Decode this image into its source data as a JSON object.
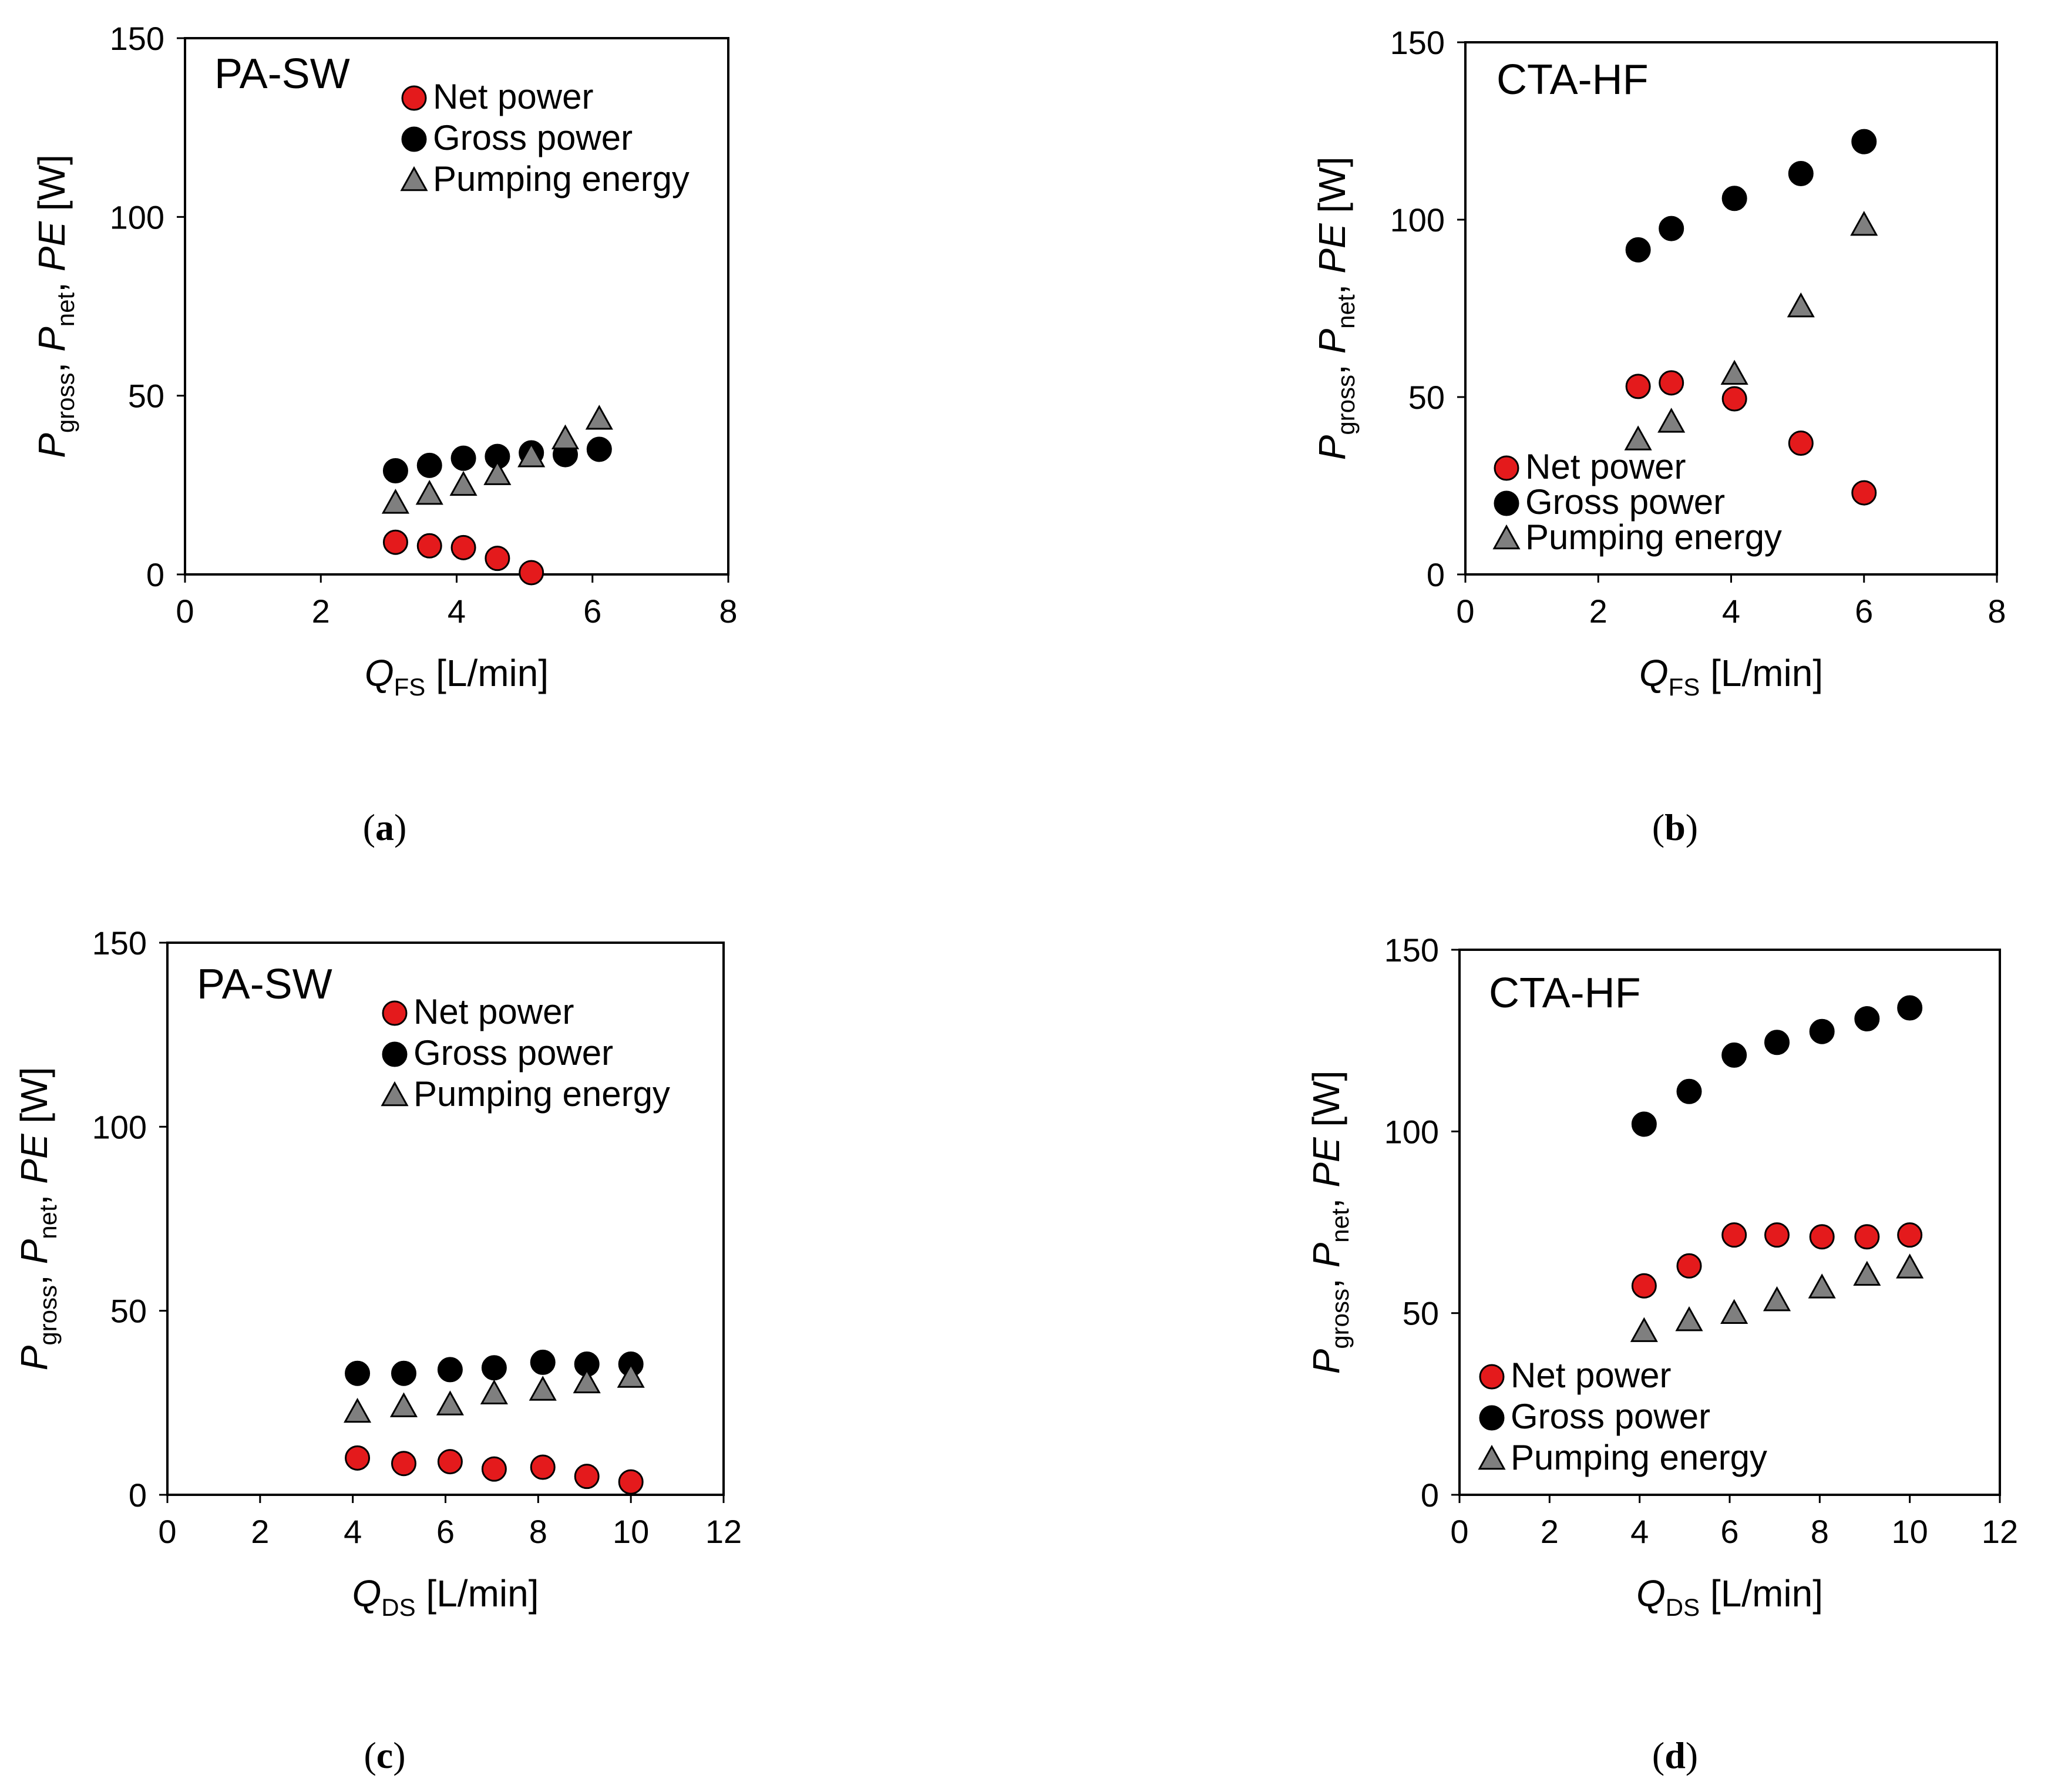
{
  "chart_data": [
    {
      "id": "a",
      "type": "scatter",
      "caption": "a",
      "title": "PA-SW",
      "xlabel": {
        "var": "Q",
        "sub": "FS",
        "unit": " [L/min]"
      },
      "ylabel": [
        {
          "var": "P",
          "sub": "gross",
          "sep": ", "
        },
        {
          "var": "P",
          "sub": "net",
          "sep": ", "
        },
        {
          "var": "PE",
          "sub": "",
          "sep": " [W]"
        }
      ],
      "xlim": [
        0,
        8
      ],
      "xticks": [
        "0",
        "2",
        "4",
        "6",
        "8"
      ],
      "ylim": [
        0,
        150
      ],
      "yticks": [
        "0",
        "50",
        "100",
        "150"
      ],
      "legend": {
        "position": "top-center"
      },
      "series": [
        {
          "name": "Net power",
          "marker": "circle",
          "color": "#e41a1c",
          "x": [
            3.1,
            3.6,
            4.1,
            4.6,
            5.1
          ],
          "y": [
            9,
            8,
            7.5,
            4.5,
            0.5
          ]
        },
        {
          "name": "Gross power",
          "marker": "circle",
          "color": "#000000",
          "x": [
            3.1,
            3.6,
            4.1,
            4.6,
            5.1,
            5.6,
            6.1
          ],
          "y": [
            29,
            30.5,
            32.5,
            33,
            34,
            33.5,
            35
          ]
        },
        {
          "name": "Pumping energy",
          "marker": "triangle",
          "color": "#7f7f7f",
          "x": [
            3.1,
            3.6,
            4.1,
            4.6,
            5.1,
            5.6,
            6.1
          ],
          "y": [
            20,
            22.5,
            25,
            28,
            33,
            38,
            43.5
          ]
        }
      ]
    },
    {
      "id": "b",
      "type": "scatter",
      "caption": "b",
      "title": "CTA-HF",
      "xlabel": {
        "var": "Q",
        "sub": "FS",
        "unit": " [L/min]"
      },
      "ylabel": [
        {
          "var": "P",
          "sub": "gross",
          "sep": ", "
        },
        {
          "var": "P",
          "sub": "net",
          "sep": ", "
        },
        {
          "var": "PE",
          "sub": "",
          "sep": " [W]"
        }
      ],
      "xlim": [
        0,
        8
      ],
      "xticks": [
        "0",
        "2",
        "4",
        "6",
        "8"
      ],
      "ylim": [
        0,
        150
      ],
      "yticks": [
        "0",
        "50",
        "100",
        "150"
      ],
      "legend": {
        "position": "bottom-left"
      },
      "legend_labels": [
        "Net power",
        "Gross power",
        "Pumping   energy"
      ],
      "series": [
        {
          "name": "Net power",
          "marker": "circle",
          "color": "#e41a1c",
          "x": [
            2.6,
            3.1,
            4.05,
            5.05,
            6.0
          ],
          "y": [
            53,
            54,
            49.5,
            37,
            23
          ]
        },
        {
          "name": "Gross power",
          "marker": "circle",
          "color": "#000000",
          "x": [
            2.6,
            3.1,
            4.05,
            5.05,
            6.0
          ],
          "y": [
            91.5,
            97.5,
            106,
            113,
            122
          ]
        },
        {
          "name": "Pumping energy",
          "marker": "triangle",
          "color": "#7f7f7f",
          "x": [
            2.6,
            3.1,
            4.05,
            5.05,
            6.0
          ],
          "y": [
            38,
            43,
            56.5,
            75.5,
            98.5
          ]
        }
      ]
    },
    {
      "id": "c",
      "type": "scatter",
      "caption": "c",
      "title": "PA-SW",
      "xlabel": {
        "var": "Q",
        "sub": "DS",
        "unit": " [L/min]"
      },
      "ylabel": [
        {
          "var": "P",
          "sub": "gross",
          "sep": ", "
        },
        {
          "var": "P",
          "sub": "net",
          "sep": ", "
        },
        {
          "var": "PE",
          "sub": "",
          "sep": " [W]"
        }
      ],
      "xlim": [
        0,
        12
      ],
      "xticks": [
        "0",
        "2",
        "4",
        "6",
        "8",
        "10",
        "12"
      ],
      "ylim": [
        0,
        150
      ],
      "yticks": [
        "0",
        "50",
        "100",
        "150"
      ],
      "legend": {
        "position": "top-center"
      },
      "series": [
        {
          "name": "Net power",
          "marker": "circle",
          "color": "#e41a1c",
          "x": [
            4.1,
            5.1,
            6.1,
            7.05,
            8.1,
            9.05,
            10.0
          ],
          "y": [
            10,
            8.5,
            9,
            7,
            7.5,
            5,
            3.5
          ]
        },
        {
          "name": "Gross power",
          "marker": "circle",
          "color": "#000000",
          "x": [
            4.1,
            5.1,
            6.1,
            7.05,
            8.1,
            9.05,
            10.0
          ],
          "y": [
            33,
            33,
            34,
            34.5,
            36,
            35.5,
            35.5
          ]
        },
        {
          "name": "Pumping energy",
          "marker": "triangle",
          "color": "#7f7f7f",
          "x": [
            4.1,
            5.1,
            6.1,
            7.05,
            8.1,
            9.05,
            10.0
          ],
          "y": [
            22.5,
            24,
            24.5,
            27.5,
            28.5,
            30.5,
            32
          ]
        }
      ]
    },
    {
      "id": "d",
      "type": "scatter",
      "caption": "d",
      "title": "CTA-HF",
      "xlabel": {
        "var": "Q",
        "sub": "DS",
        "unit": " [L/min]"
      },
      "ylabel": [
        {
          "var": "P",
          "sub": "gross",
          "sep": ", "
        },
        {
          "var": "P",
          "sub": "net",
          "sep": ", "
        },
        {
          "var": "PE",
          "sub": "",
          "sep": " [W]"
        }
      ],
      "xlim": [
        0,
        12
      ],
      "xticks": [
        "0",
        "2",
        "4",
        "6",
        "8",
        "10",
        "12"
      ],
      "ylim": [
        0,
        150
      ],
      "yticks": [
        "0",
        "50",
        "100",
        "150"
      ],
      "legend": {
        "position": "bottom-left"
      },
      "series": [
        {
          "name": "Net power",
          "marker": "circle",
          "color": "#e41a1c",
          "x": [
            4.1,
            5.1,
            6.1,
            7.05,
            8.05,
            9.05,
            10.0
          ],
          "y": [
            57.5,
            63,
            71.5,
            71.5,
            71,
            71,
            71.5
          ]
        },
        {
          "name": "Gross power",
          "marker": "circle",
          "color": "#000000",
          "x": [
            4.1,
            5.1,
            6.1,
            7.05,
            8.05,
            9.05,
            10.0
          ],
          "y": [
            102,
            111,
            121,
            124.5,
            127.5,
            131,
            134
          ]
        },
        {
          "name": "Pumping energy",
          "marker": "triangle",
          "color": "#7f7f7f",
          "x": [
            4.1,
            5.1,
            6.1,
            7.05,
            8.05,
            9.05,
            10.0
          ],
          "y": [
            45,
            48,
            50,
            53.5,
            57,
            60.5,
            62.5
          ]
        }
      ]
    }
  ]
}
